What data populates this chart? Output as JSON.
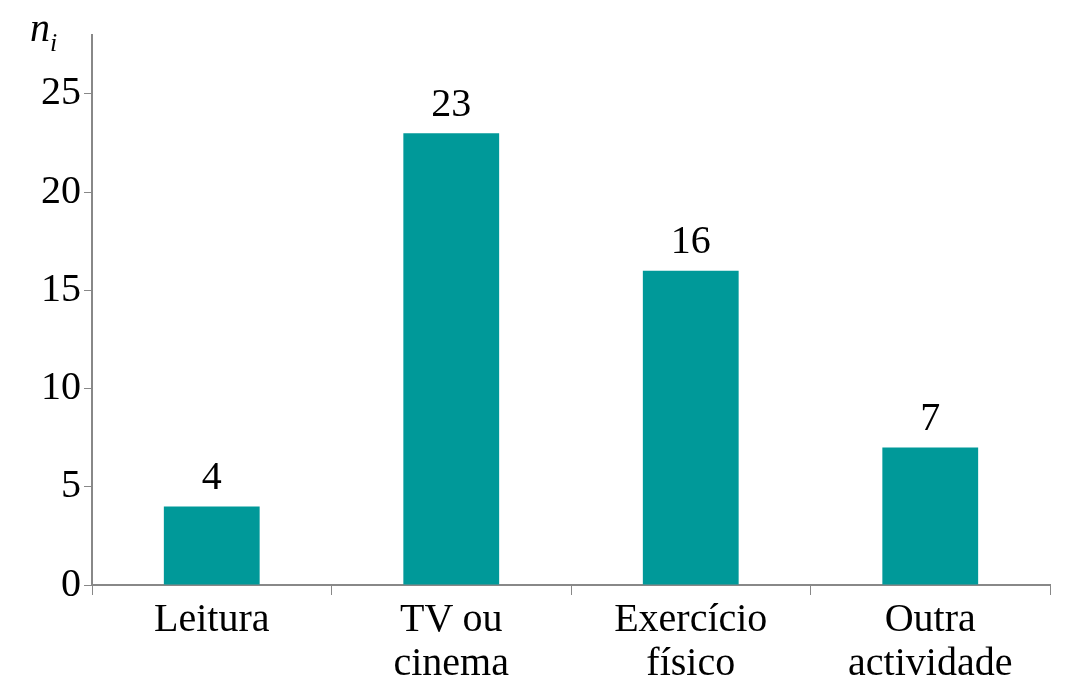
{
  "chart_data": {
    "type": "bar",
    "ylabel": "n$_{i}$",
    "categories": [
      "Leitura",
      "TV ou cinema",
      "Exercício físico",
      "Outra actividade"
    ],
    "values": [
      4,
      23,
      16,
      7
    ],
    "color": "#009999",
    "ylim": [
      0,
      28
    ],
    "yticks": [
      0,
      5,
      10,
      15,
      20,
      25
    ],
    "grid": false,
    "legend": false,
    "data_labels": true
  }
}
